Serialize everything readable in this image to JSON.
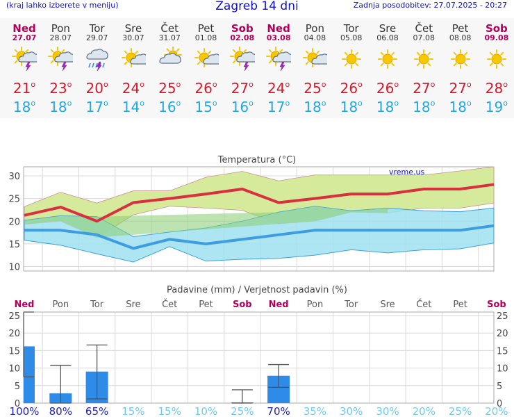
{
  "header": {
    "hint": "(kraj lahko izberete v meniju)",
    "title": "Zagreb 14 dni",
    "updated": "Zadnja posodobitev: 27.07.2025 - 20:27"
  },
  "days": [
    {
      "name": "Ned",
      "date": "27.07",
      "icon": "sun-cloud-storm-icon",
      "max": "21",
      "min": "18",
      "weekend": true
    },
    {
      "name": "Pon",
      "date": "28.07",
      "icon": "sun-cloud-storm-icon",
      "max": "23",
      "min": "18",
      "weekend": false
    },
    {
      "name": "Tor",
      "date": "29.07",
      "icon": "cloud-rain-storm-icon",
      "max": "20",
      "min": "17",
      "weekend": false
    },
    {
      "name": "Sre",
      "date": "30.07",
      "icon": "sun-small-cloud-icon",
      "max": "24",
      "min": "14",
      "weekend": false
    },
    {
      "name": "Čet",
      "date": "31.07",
      "icon": "cloud-sun-icon",
      "max": "25",
      "min": "16",
      "weekend": false
    },
    {
      "name": "Pet",
      "date": "01.08",
      "icon": "sun-small-cloud-icon",
      "max": "26",
      "min": "15",
      "weekend": false
    },
    {
      "name": "Sob",
      "date": "02.08",
      "icon": "sun-cloud-storm-icon",
      "max": "27",
      "min": "16",
      "weekend": true
    },
    {
      "name": "Ned",
      "date": "03.08",
      "icon": "sun-cloud-storm-icon",
      "max": "24",
      "min": "17",
      "weekend": true
    },
    {
      "name": "Pon",
      "date": "04.08",
      "icon": "sun-small-cloud-icon",
      "max": "25",
      "min": "18",
      "weekend": false
    },
    {
      "name": "Tor",
      "date": "05.08",
      "icon": "sun-icon",
      "max": "26",
      "min": "18",
      "weekend": false
    },
    {
      "name": "Sre",
      "date": "06.08",
      "icon": "sun-icon",
      "max": "26",
      "min": "18",
      "weekend": false
    },
    {
      "name": "Čet",
      "date": "07.08",
      "icon": "sun-icon",
      "max": "27",
      "min": "18",
      "weekend": false
    },
    {
      "name": "Pet",
      "date": "08.08",
      "icon": "sun-icon",
      "max": "27",
      "min": "18",
      "weekend": false
    },
    {
      "name": "Sob",
      "date": "09.08",
      "icon": "sun-icon",
      "max": "28",
      "min": "19",
      "weekend": true
    }
  ],
  "units": {
    "degree": "o"
  },
  "colors": {
    "weekend": "#b0005a",
    "max": "#d8162a",
    "min": "#22a8e0",
    "max_band": "#d6ea9c",
    "min_band": "#9fe0f0",
    "overlap": "#8fd07c",
    "max_line": "#d93040",
    "min_line": "#3d9de0",
    "rain_bar": "#2e8be8"
  },
  "chart_data": [
    {
      "type": "line",
      "title": "Temperatura (°C)",
      "watermark": "vreme.us",
      "ylim": [
        9,
        32
      ],
      "yticks": [
        10,
        15,
        20,
        25,
        30
      ],
      "grid": true,
      "series": [
        {
          "role": "max_mean",
          "values": [
            21.3,
            23.1,
            20.0,
            24.1,
            25.0,
            26.0,
            27.1,
            24.1,
            25.0,
            26.0,
            26.0,
            27.1,
            27.1,
            28.1
          ]
        },
        {
          "role": "max_upper",
          "values": [
            23.2,
            26.4,
            24.0,
            26.7,
            26.7,
            29.7,
            31.0,
            28.9,
            30.2,
            30.2,
            30.2,
            30.2,
            31.1,
            32.0
          ]
        },
        {
          "role": "max_lower",
          "values": [
            19.3,
            20.0,
            16.4,
            21.4,
            23.3,
            22.9,
            22.4,
            19.4,
            20.0,
            22.0,
            21.8,
            22.9,
            22.9,
            24.0
          ]
        },
        {
          "role": "min_mean",
          "values": [
            18.0,
            18.0,
            17.0,
            14.0,
            16.0,
            15.0,
            16.0,
            17.0,
            18.0,
            18.0,
            18.0,
            18.0,
            18.0,
            19.0
          ]
        },
        {
          "role": "min_upper",
          "values": [
            20.2,
            21.2,
            21.0,
            16.6,
            17.6,
            18.5,
            20.0,
            22.0,
            23.3,
            22.3,
            22.9,
            22.3,
            22.1,
            22.9
          ]
        },
        {
          "role": "min_lower",
          "values": [
            15.8,
            14.7,
            12.8,
            11.0,
            14.4,
            11.2,
            11.6,
            11.8,
            12.5,
            13.7,
            13.0,
            13.7,
            13.9,
            15.2
          ]
        }
      ]
    },
    {
      "type": "bar",
      "title": "Padavine (mm) / Verjetnost padavin (%)",
      "ylim": [
        0,
        26
      ],
      "yticks": [
        0,
        5,
        10,
        15,
        20,
        25
      ],
      "categories": [
        "Ned",
        "Pon",
        "Tor",
        "Sre",
        "Čet",
        "Pet",
        "Sob",
        "Ned",
        "Pon",
        "Tor",
        "Sre",
        "Čet",
        "Pet",
        "Sob"
      ],
      "weekend": [
        true,
        false,
        false,
        false,
        false,
        false,
        true,
        true,
        false,
        false,
        false,
        false,
        false,
        true
      ],
      "values": [
        16.2,
        2.8,
        9.0,
        0,
        0,
        0,
        0.2,
        7.8,
        0,
        0,
        0,
        0,
        0,
        0
      ],
      "error_low": [
        7.5,
        0,
        1.2,
        null,
        null,
        null,
        0,
        4.5,
        null,
        null,
        null,
        null,
        null,
        null
      ],
      "error_high": [
        26,
        10.8,
        16.6,
        null,
        null,
        null,
        3.8,
        11.0,
        null,
        null,
        null,
        null,
        null,
        null
      ],
      "probability": [
        "100%",
        "80%",
        "65%",
        "15%",
        "15%",
        "10%",
        "25%",
        "70%",
        "35%",
        "30%",
        "30%",
        "20%",
        "25%",
        "20%"
      ]
    }
  ]
}
